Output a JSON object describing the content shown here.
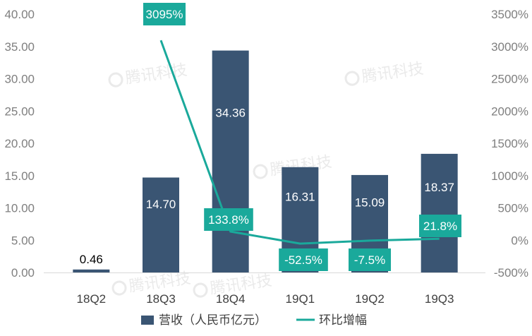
{
  "chart_data": {
    "type": "bar",
    "categories": [
      "18Q2",
      "18Q3",
      "18Q4",
      "19Q1",
      "19Q2",
      "19Q3"
    ],
    "series": [
      {
        "name": "营收（人民币亿元）",
        "type": "bar",
        "axis": "left",
        "values": [
          0.46,
          14.7,
          34.36,
          16.31,
          15.09,
          18.37
        ],
        "labels": [
          "0.46",
          "14.70",
          "34.36",
          "16.31",
          "15.09",
          "18.37"
        ],
        "color": "#3a5573"
      },
      {
        "name": "环比增幅",
        "type": "line",
        "axis": "right",
        "values": [
          null,
          3095,
          133.8,
          -52.5,
          -7.5,
          21.8
        ],
        "labels": [
          null,
          "3095%",
          "133.8%",
          "-52.5%",
          "-7.5%",
          "21.8%"
        ],
        "color": "#1aa99b"
      }
    ],
    "y_left": {
      "ylim": [
        0,
        40
      ],
      "ticks": [
        "0.00",
        "5.00",
        "10.00",
        "15.00",
        "20.00",
        "25.00",
        "30.00",
        "35.00",
        "40.00"
      ]
    },
    "y_right": {
      "ylim": [
        -500,
        3500
      ],
      "ticks": [
        "-500%",
        "0%",
        "500%",
        "1000%",
        "1500%",
        "2000%",
        "2500%",
        "3000%",
        "3500%"
      ]
    },
    "grid": false,
    "legend_position": "bottom",
    "watermark": "腾讯科技"
  }
}
